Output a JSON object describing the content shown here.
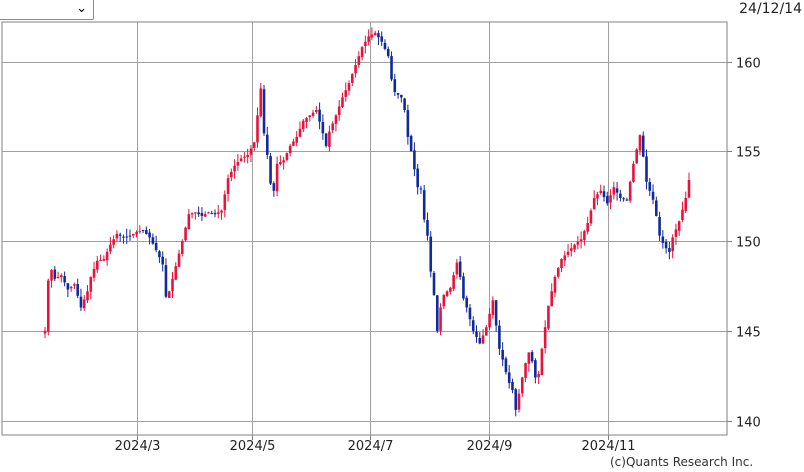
{
  "header": {
    "selector_value": "",
    "date": "24/12/14"
  },
  "footer": {
    "credit": "(c)Quants Research Inc."
  },
  "chart_data": {
    "type": "candlestick",
    "ylim": [
      139.2,
      162.2
    ],
    "y_ticks": [
      140,
      145,
      150,
      155,
      160
    ],
    "x_tick_labels": [
      "2024/3",
      "2024/5",
      "2024/7",
      "2024/9",
      "2024/11"
    ],
    "grid": true,
    "colors": {
      "up": "#e8123c",
      "down": "#102a9a",
      "grid": "#a0a0a0",
      "frame": "#808080"
    },
    "price_path": [
      [
        0,
        145.0
      ],
      [
        1,
        147.8
      ],
      [
        2,
        148.4
      ],
      [
        3,
        147.9
      ],
      [
        5,
        148.1
      ],
      [
        7,
        147.3
      ],
      [
        9,
        147.6
      ],
      [
        11,
        146.3
      ],
      [
        13,
        147.2
      ],
      [
        14,
        148.0
      ],
      [
        16,
        148.9
      ],
      [
        18,
        149.0
      ],
      [
        20,
        149.8
      ],
      [
        22,
        150.4
      ],
      [
        24,
        150.2
      ],
      [
        26,
        150.3
      ],
      [
        28,
        150.5
      ],
      [
        30,
        150.6
      ],
      [
        32,
        150.2
      ],
      [
        34,
        149.5
      ],
      [
        36,
        148.7
      ],
      [
        37,
        146.9
      ],
      [
        38,
        147.2
      ],
      [
        40,
        148.6
      ],
      [
        42,
        150.0
      ],
      [
        44,
        151.5
      ],
      [
        46,
        151.6
      ],
      [
        48,
        151.4
      ],
      [
        50,
        151.6
      ],
      [
        52,
        151.5
      ],
      [
        54,
        151.7
      ],
      [
        56,
        153.5
      ],
      [
        58,
        154.2
      ],
      [
        60,
        154.6
      ],
      [
        62,
        154.8
      ],
      [
        64,
        155.5
      ],
      [
        65,
        157.0
      ],
      [
        66,
        158.5
      ],
      [
        67,
        156.0
      ],
      [
        68,
        154.8
      ],
      [
        69,
        153.2
      ],
      [
        70,
        152.8
      ],
      [
        71,
        154.3
      ],
      [
        73,
        154.5
      ],
      [
        75,
        155.3
      ],
      [
        77,
        155.8
      ],
      [
        79,
        156.7
      ],
      [
        81,
        157.0
      ],
      [
        83,
        157.3
      ],
      [
        85,
        156.0
      ],
      [
        86,
        155.3
      ],
      [
        87,
        156.1
      ],
      [
        89,
        157.0
      ],
      [
        91,
        158.0
      ],
      [
        93,
        158.8
      ],
      [
        95,
        159.8
      ],
      [
        97,
        160.8
      ],
      [
        99,
        161.4
      ],
      [
        101,
        161.6
      ],
      [
        103,
        161.1
      ],
      [
        105,
        160.3
      ],
      [
        106,
        159.0
      ],
      [
        107,
        158.3
      ],
      [
        109,
        158.0
      ],
      [
        110,
        157.3
      ],
      [
        111,
        155.8
      ],
      [
        112,
        155.0
      ],
      [
        113,
        154.0
      ],
      [
        114,
        153.0
      ],
      [
        115,
        152.9
      ],
      [
        116,
        151.2
      ],
      [
        117,
        150.3
      ],
      [
        118,
        148.3
      ],
      [
        119,
        147.0
      ],
      [
        120,
        145.0
      ],
      [
        121,
        146.3
      ],
      [
        122,
        147.0
      ],
      [
        124,
        147.4
      ],
      [
        126,
        148.8
      ],
      [
        127,
        148.0
      ],
      [
        128,
        146.8
      ],
      [
        129,
        146.3
      ],
      [
        131,
        145.0
      ],
      [
        133,
        144.3
      ],
      [
        135,
        145.2
      ],
      [
        137,
        146.7
      ],
      [
        138,
        145.3
      ],
      [
        139,
        144.0
      ],
      [
        140,
        143.4
      ],
      [
        141,
        142.7
      ],
      [
        142,
        142.1
      ],
      [
        143,
        141.7
      ],
      [
        144,
        140.6
      ],
      [
        145,
        141.5
      ],
      [
        146,
        142.4
      ],
      [
        147,
        143.2
      ],
      [
        148,
        143.8
      ],
      [
        149,
        143.3
      ],
      [
        150,
        142.4
      ],
      [
        151,
        142.6
      ],
      [
        152,
        144.0
      ],
      [
        154,
        146.4
      ],
      [
        156,
        148.0
      ],
      [
        158,
        149.0
      ],
      [
        160,
        149.4
      ],
      [
        162,
        149.8
      ],
      [
        164,
        150.1
      ],
      [
        166,
        151.0
      ],
      [
        168,
        152.4
      ],
      [
        170,
        152.8
      ],
      [
        172,
        152.1
      ],
      [
        174,
        153.0
      ],
      [
        176,
        152.4
      ],
      [
        178,
        152.3
      ],
      [
        180,
        154.3
      ],
      [
        181,
        155.1
      ],
      [
        182,
        155.9
      ],
      [
        183,
        154.7
      ],
      [
        184,
        153.3
      ],
      [
        186,
        152.3
      ],
      [
        187,
        151.4
      ],
      [
        188,
        150.3
      ],
      [
        189,
        149.9
      ],
      [
        190,
        149.6
      ],
      [
        191,
        149.4
      ],
      [
        192,
        150.2
      ],
      [
        194,
        151.1
      ],
      [
        196,
        152.4
      ],
      [
        197,
        153.4
      ]
    ]
  }
}
